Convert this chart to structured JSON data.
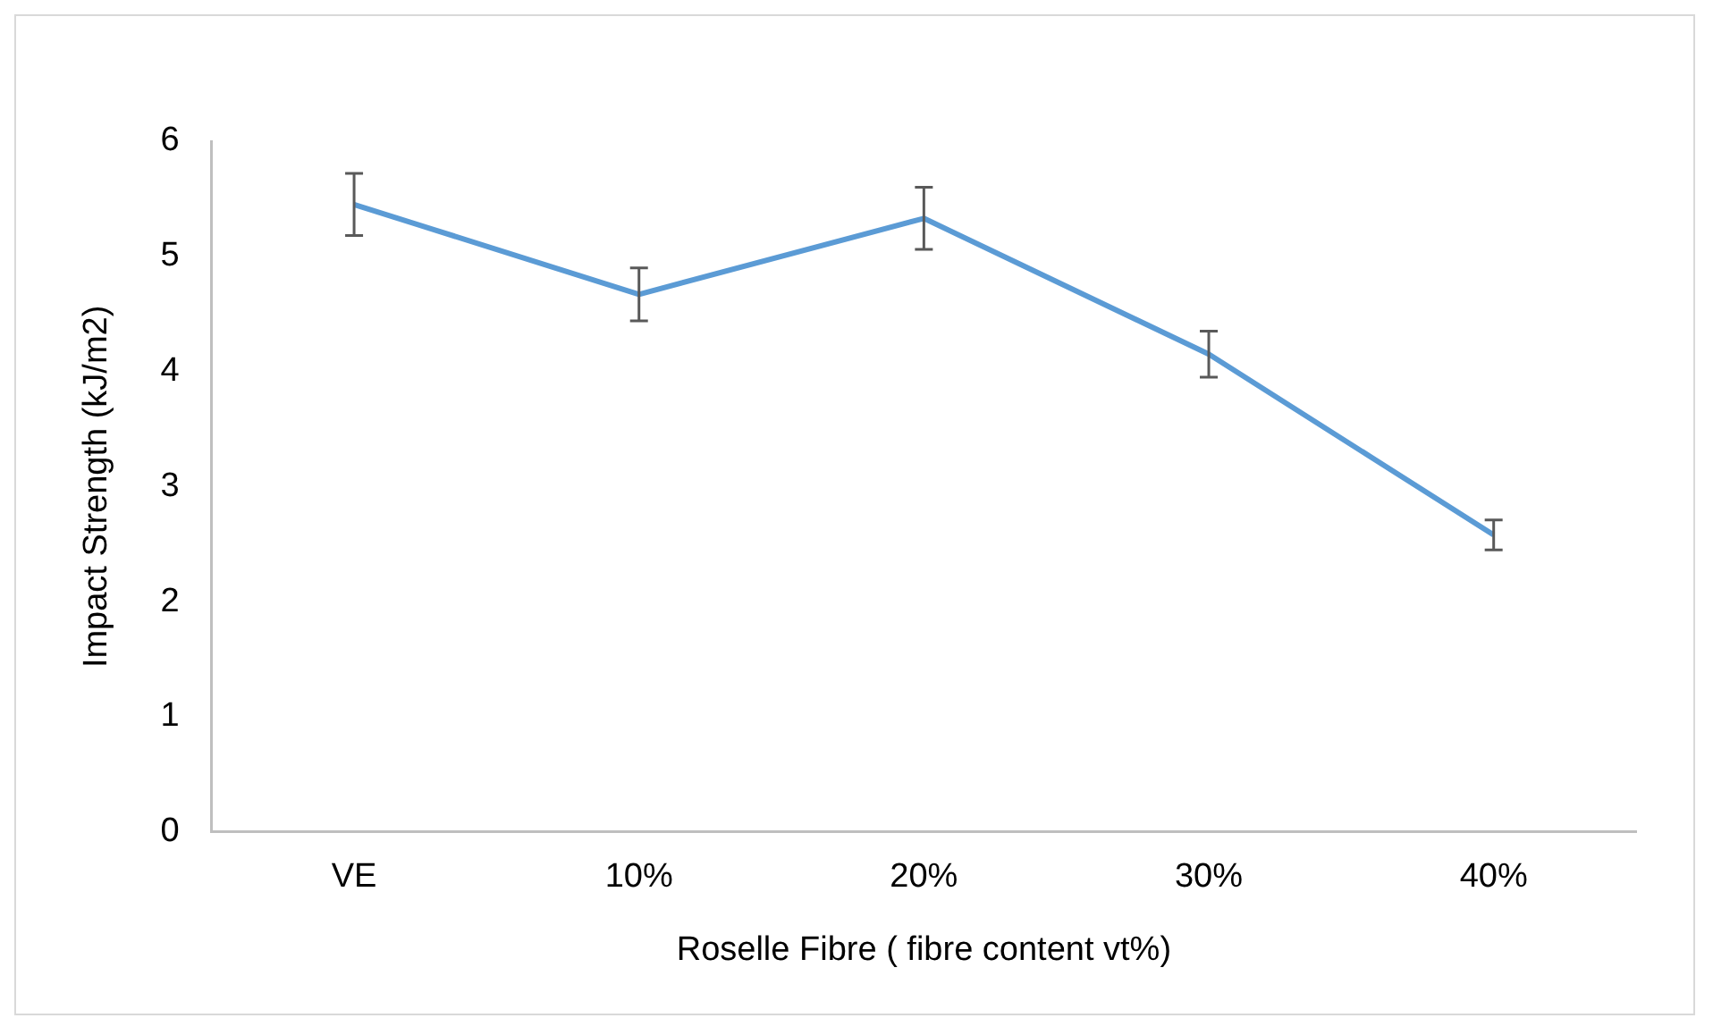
{
  "chart_data": {
    "type": "line",
    "xlabel": "Roselle Fibre ( fibre content vt%)",
    "ylabel": "Impact Strength (kJ/m2)",
    "categories": [
      "VE",
      "10%",
      "20%",
      "30%",
      "40%"
    ],
    "series": [
      {
        "color": "#5b9bd5",
        "values": [
          5.45,
          4.67,
          5.33,
          4.15,
          2.58
        ],
        "errors": [
          0.27,
          0.23,
          0.27,
          0.2,
          0.13
        ]
      }
    ],
    "ylim": [
      0,
      6
    ],
    "yticks": [
      0,
      1,
      2,
      3,
      4,
      5,
      6
    ],
    "grid": false,
    "legend": false,
    "marker": "none",
    "line_style": "solid"
  }
}
